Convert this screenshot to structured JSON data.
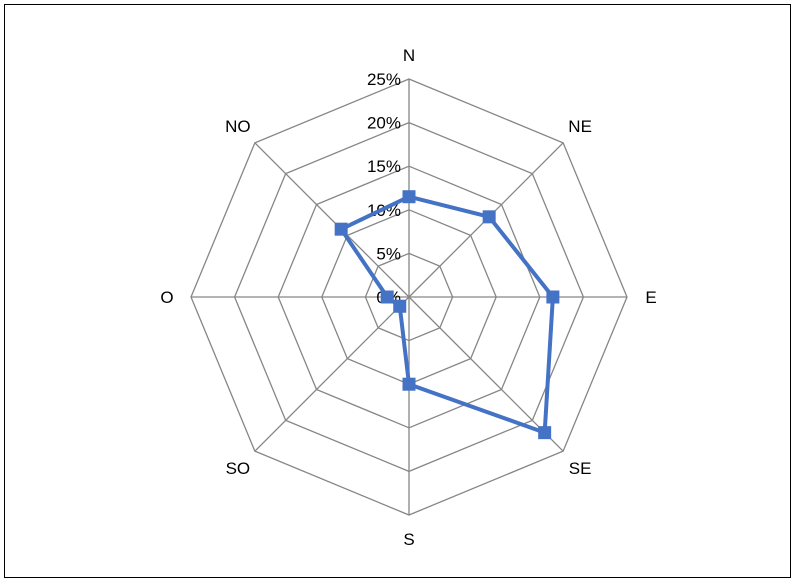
{
  "chart_data": {
    "type": "radar",
    "categories": [
      "N",
      "NE",
      "E",
      "SE",
      "S",
      "SO",
      "O",
      "NO"
    ],
    "tick_labels": [
      "0%",
      "5%",
      "10%",
      "15%",
      "20%",
      "25%"
    ],
    "rlim": [
      0,
      25
    ],
    "grid": true,
    "series": [
      {
        "values": [
          11.5,
          13.0,
          16.5,
          22.0,
          10.0,
          1.5,
          2.5,
          11.0
        ]
      }
    ]
  },
  "colors": {
    "series": "#4472C4",
    "grid": "#868686",
    "border": "#000000"
  }
}
